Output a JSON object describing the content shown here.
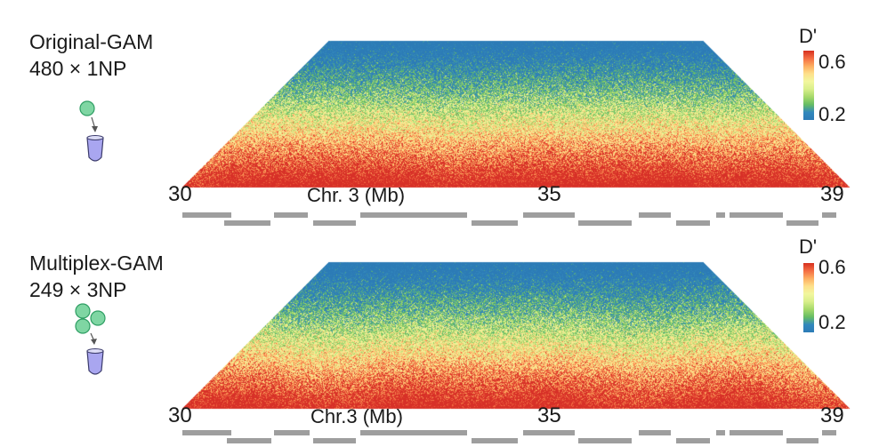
{
  "panels": [
    {
      "method": "Original-GAM",
      "sampling": "480 × 1NP",
      "np_count": 1,
      "axis_start": "30",
      "axis_mid": "35",
      "axis_end": "39",
      "axis_label": "Chr. 3 (Mb)",
      "colorbar": {
        "label": "D'",
        "max_label": "0.6",
        "min_label": "0.2"
      }
    },
    {
      "method": "Multiplex-GAM",
      "sampling": "249 × 3NP",
      "np_count": 3,
      "axis_start": "30",
      "axis_mid": "35",
      "axis_end": "39",
      "axis_label": "Chr.3 (Mb)",
      "colorbar": {
        "label": "D'",
        "max_label": "0.6",
        "min_label": "0.2"
      }
    }
  ],
  "colors": {
    "high": "#d7301f",
    "mid": "#f2f79e",
    "low": "#2c7bb6",
    "nuclear_profile": "#7fd6a3",
    "tube": "#a9a6f0",
    "gene_track": "#9e9e9e"
  }
}
